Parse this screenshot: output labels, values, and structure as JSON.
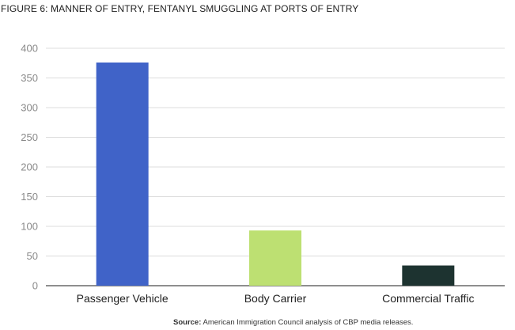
{
  "title": "FIGURE 6: MANNER OF ENTRY, FENTANYL SMUGGLING AT PORTS OF ENTRY",
  "source": {
    "label": "Source:",
    "text": "American Immigration Council analysis of CBP media releases."
  },
  "chart_data": {
    "type": "bar",
    "title": "FIGURE 6: MANNER OF ENTRY, FENTANYL SMUGGLING AT PORTS OF ENTRY",
    "categories": [
      "Passenger Vehicle",
      "Body Carrier",
      "Commercial Traffic"
    ],
    "values": [
      376,
      93,
      34
    ],
    "colors": [
      "#4063c8",
      "#bde072",
      "#1d3330"
    ],
    "xlabel": "",
    "ylabel": "",
    "ylim": [
      0,
      400
    ],
    "yticks": [
      0,
      50,
      100,
      150,
      200,
      250,
      300,
      350,
      400
    ],
    "grid": true,
    "legend": "none"
  }
}
